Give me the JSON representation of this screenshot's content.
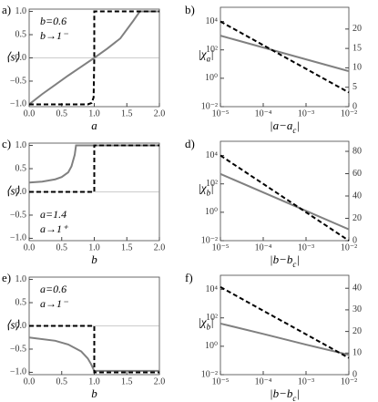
{
  "chart_data": [
    {
      "type": "line",
      "panel_label": "a)",
      "ylabel": [
        "⟨s⟩"
      ],
      "xlabel": [
        "a"
      ],
      "annotations": [
        {
          "text": "b=0.6",
          "color": "#808080"
        },
        {
          "text": "b→1⁻",
          "color": "#000000"
        }
      ],
      "annotation_corner": "upper left",
      "xlim": [
        0,
        2
      ],
      "ylim": [
        -1.05,
        1.05
      ],
      "xticks": [
        {
          "value": 0,
          "label": "0.0"
        },
        0.5,
        {
          "value": 1,
          "label": "1.0"
        },
        1.5,
        {
          "value": 2,
          "label": "2.0"
        }
      ],
      "yticks": [
        {
          "value": -1,
          "label": "−1.0"
        },
        {
          "value": -0.5,
          "label": "−0.5"
        },
        {
          "value": 0,
          "label": "0.0"
        },
        0.5,
        {
          "value": 1,
          "label": "1.0"
        }
      ],
      "series": [
        {
          "color": "#808080",
          "dashed": false,
          "x": [
            0,
            0.2,
            0.4,
            0.6,
            0.8,
            1.0,
            1.2,
            1.4,
            1.6,
            1.7,
            1.8,
            2.0
          ],
          "values": [
            -1,
            -0.78,
            -0.58,
            -0.38,
            -0.19,
            0,
            0.2,
            0.42,
            0.8,
            1,
            1,
            1
          ]
        },
        {
          "color": "#000000",
          "dashed": true,
          "x": [
            0,
            0.9,
            0.96,
            0.99,
            1,
            1,
            2
          ],
          "values": [
            -1,
            -1,
            -0.97,
            -0.85,
            0,
            1,
            1
          ]
        }
      ]
    },
    {
      "type": "line",
      "panel_label": "b)",
      "ylabel": [
        "|χ",
        "a",
        "|"
      ],
      "xlabel": [
        "|a−a",
        "c",
        "|"
      ],
      "xscale": "log",
      "yscale": "log",
      "xlim": [
        1e-05,
        0.01
      ],
      "ylim": [
        0.01,
        100000
      ],
      "y2lim": [
        0,
        25.6
      ],
      "xticks": [
        {
          "value": 1e-05,
          "label": "10⁻⁵"
        },
        {
          "value": 0.0001,
          "label": "10⁻⁴"
        },
        {
          "value": 0.001,
          "label": "10⁻³"
        },
        {
          "value": 0.01,
          "label": "10⁻²"
        }
      ],
      "yticks": [
        {
          "value": 0.01,
          "label": "10⁻²"
        },
        {
          "value": 1,
          "label": "10⁰"
        },
        {
          "value": 100,
          "label": "10²"
        },
        {
          "value": 10000,
          "label": "10⁴"
        }
      ],
      "y2ticks": [
        0,
        5,
        10,
        15,
        20
      ],
      "series": [
        {
          "color": "#808080",
          "dashed": false,
          "x": [
            1e-05,
            0.0001,
            0.001,
            0.01
          ],
          "values": [
            1000,
            147,
            21.5,
            3.16
          ]
        },
        {
          "color": "#000000",
          "dashed": true,
          "x": [
            1e-05,
            0.0001,
            0.001,
            0.01
          ],
          "values": [
            10000,
            215,
            4.6,
            0.1
          ]
        }
      ]
    },
    {
      "type": "line",
      "panel_label": "c)",
      "ylabel": [
        "⟨s⟩"
      ],
      "xlabel": [
        "b"
      ],
      "annotations": [
        {
          "text": "a=1.4",
          "color": "#808080"
        },
        {
          "text": "a→1⁺",
          "color": "#000000"
        }
      ],
      "annotation_corner": "lower left",
      "xlim": [
        0,
        2
      ],
      "ylim": [
        -1.05,
        1.05
      ],
      "xticks": [
        {
          "value": 0,
          "label": "0.0"
        },
        0.5,
        {
          "value": 1,
          "label": "1.0"
        },
        1.5,
        {
          "value": 2,
          "label": "2.0"
        }
      ],
      "yticks": [
        {
          "value": -1,
          "label": "−1.0"
        },
        {
          "value": -0.5,
          "label": "−0.5"
        },
        {
          "value": 0,
          "label": "0.0"
        },
        0.5,
        {
          "value": 1,
          "label": "1.0"
        }
      ],
      "series": [
        {
          "color": "#808080",
          "dashed": false,
          "x": [
            0,
            0.2,
            0.4,
            0.5,
            0.6,
            0.65,
            0.7,
            0.72,
            2
          ],
          "values": [
            0.2,
            0.22,
            0.27,
            0.32,
            0.42,
            0.55,
            0.8,
            1,
            1
          ]
        },
        {
          "color": "#000000",
          "dashed": true,
          "x": [
            0,
            1,
            1,
            2
          ],
          "values": [
            0,
            0,
            1,
            1
          ]
        }
      ]
    },
    {
      "type": "line",
      "panel_label": "d)",
      "ylabel": [
        "|χ",
        "b",
        "|"
      ],
      "xlabel": [
        "|b−b",
        "c",
        "|"
      ],
      "xscale": "log",
      "yscale": "log",
      "xlim": [
        1e-05,
        0.01
      ],
      "ylim": [
        0.01,
        100000
      ],
      "y2lim": [
        0,
        89
      ],
      "xticks": [
        {
          "value": 1e-05,
          "label": "10⁻⁵"
        },
        {
          "value": 0.0001,
          "label": "10⁻⁴"
        },
        {
          "value": 0.001,
          "label": "10⁻³"
        },
        {
          "value": 0.01,
          "label": "10⁻²"
        }
      ],
      "yticks": [
        {
          "value": 0.01,
          "label": "10⁻²"
        },
        {
          "value": 1,
          "label": "10⁰"
        },
        {
          "value": 100,
          "label": "10²"
        },
        {
          "value": 10000,
          "label": "10⁴"
        }
      ],
      "y2ticks": [
        0,
        20,
        40,
        60,
        80
      ],
      "series": [
        {
          "color": "#808080",
          "dashed": false,
          "x": [
            1e-05,
            0.0001,
            0.001,
            0.01
          ],
          "values": [
            500,
            25,
            1.25,
            0.0625
          ]
        },
        {
          "color": "#000000",
          "dashed": true,
          "x": [
            1e-05,
            0.0001,
            0.001,
            0.01
          ],
          "values": [
            10000,
            100,
            1,
            0.01
          ]
        }
      ]
    },
    {
      "type": "line",
      "panel_label": "e)",
      "ylabel": [
        "⟨s⟩"
      ],
      "xlabel": [
        "b"
      ],
      "annotations": [
        {
          "text": "a=0.6",
          "color": "#808080"
        },
        {
          "text": "a→1⁻",
          "color": "#000000"
        }
      ],
      "annotation_corner": "upper left",
      "xlim": [
        0,
        2
      ],
      "ylim": [
        -1.05,
        1.05
      ],
      "xticks": [
        {
          "value": 0,
          "label": "0.0"
        },
        0.5,
        {
          "value": 1,
          "label": "1.0"
        },
        1.5,
        {
          "value": 2,
          "label": "2.0"
        }
      ],
      "yticks": [
        {
          "value": -1,
          "label": "−1.0"
        },
        {
          "value": -0.5,
          "label": "−0.5"
        },
        {
          "value": 0,
          "label": "0.0"
        },
        0.5,
        {
          "value": 1,
          "label": "1.0"
        }
      ],
      "series": [
        {
          "color": "#808080",
          "dashed": false,
          "x": [
            0,
            0.4,
            0.6,
            0.8,
            0.9,
            0.95,
            1,
            2
          ],
          "values": [
            -0.25,
            -0.32,
            -0.4,
            -0.55,
            -0.7,
            -0.82,
            -0.97,
            -0.97
          ]
        },
        {
          "color": "#000000",
          "dashed": true,
          "x": [
            0,
            1,
            1,
            2
          ],
          "values": [
            0,
            0,
            -1,
            -1
          ]
        }
      ]
    },
    {
      "type": "line",
      "panel_label": "f)",
      "ylabel": [
        "|χ",
        "b",
        "|"
      ],
      "xlabel": [
        "|b−b",
        "c",
        "|"
      ],
      "xscale": "log",
      "yscale": "log",
      "xlim": [
        1e-05,
        0.01
      ],
      "ylim": [
        0.01,
        100000
      ],
      "y2lim": [
        0,
        46
      ],
      "xticks": [
        {
          "value": 1e-05,
          "label": "10⁻⁵"
        },
        {
          "value": 0.0001,
          "label": "10⁻⁴"
        },
        {
          "value": 0.001,
          "label": "10⁻³"
        },
        {
          "value": 0.01,
          "label": "10⁻²"
        }
      ],
      "yticks": [
        {
          "value": 0.01,
          "label": "10⁻²"
        },
        {
          "value": 1,
          "label": "10⁰"
        },
        {
          "value": 100,
          "label": "10²"
        },
        {
          "value": 10000,
          "label": "10⁴"
        }
      ],
      "y2ticks": [
        0,
        10,
        20,
        30,
        40
      ],
      "series": [
        {
          "color": "#808080",
          "dashed": false,
          "x": [
            1e-05,
            0.0001,
            0.001,
            0.01
          ],
          "values": [
            40,
            7.4,
            1.3,
            0.25
          ]
        },
        {
          "color": "#000000",
          "dashed": true,
          "x": [
            1e-05,
            0.0001,
            0.001,
            0.01
          ],
          "values": [
            15000,
            320,
            7,
            0.15
          ]
        }
      ]
    }
  ]
}
